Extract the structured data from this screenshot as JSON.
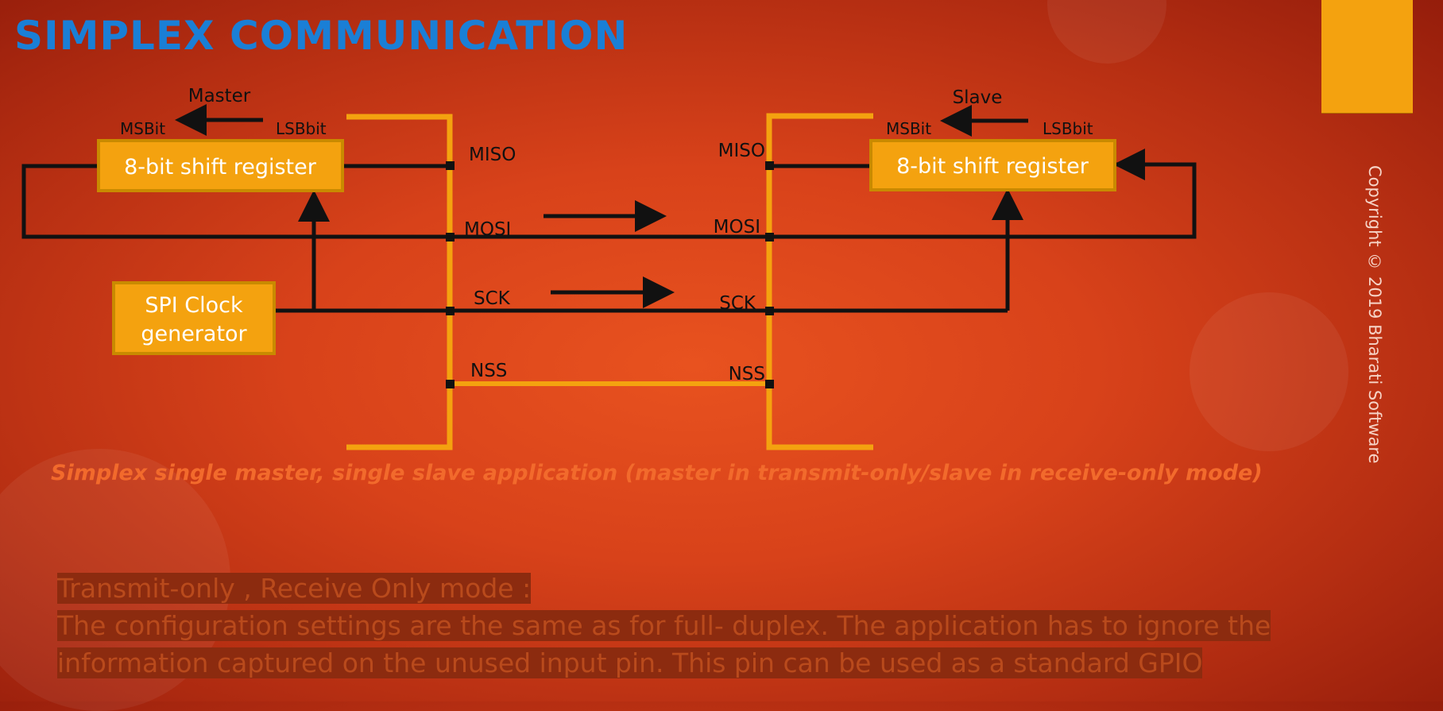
{
  "title": "SIMPLEX COMMUNICATION",
  "master": {
    "label": "Master",
    "msb_label": "MSBit",
    "lsb_label": "LSBbit",
    "register_label": "8-bit shift register",
    "clock_line1": "SPI Clock",
    "clock_line2": "generator"
  },
  "slave": {
    "label": "Slave",
    "msb_label": "MSBit",
    "lsb_label": "LSBbit",
    "register_label": "8-bit shift register"
  },
  "pins": {
    "master_miso": "MISO",
    "master_mosi": "MOSI",
    "master_sck": "SCK",
    "master_nss": "NSS",
    "slave_miso": "MISO",
    "slave_mosi": "MOSI",
    "slave_sck": "SCK",
    "slave_nss": "NSS"
  },
  "caption": "Simplex single master, single slave application (master in transmit-only/slave in receive-only mode)",
  "copyright": "Copyright © 2019 Bharati Software",
  "notes": {
    "heading": "Transmit-only , Receive Only mode :",
    "line1": "The configuration settings are the same as for full- duplex. The application has to ignore the",
    "line2": "information captured on the unused input pin. This pin can be used as a standard GPIO"
  },
  "colors": {
    "title": "#1a7fd6",
    "accent_orange": "#f4a20f",
    "box_border": "#c98a00",
    "wire": "#111111",
    "caption": "#f26a2c"
  }
}
